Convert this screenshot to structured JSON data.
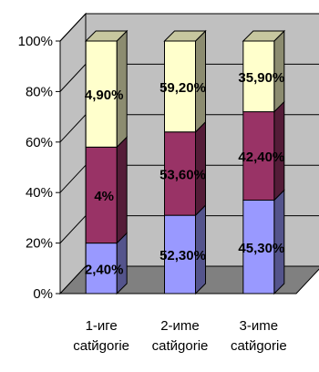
{
  "chart_data": {
    "type": "bar",
    "stacked": "percent",
    "three_d": true,
    "categories": [
      "1-иге\ncatйgorie",
      "2-иme\ncatйgorie",
      "3-иme\ncatйgorie"
    ],
    "series": [
      {
        "values": [
          20,
          31,
          37
        ],
        "labels": [
          "2,40%",
          "52,30%",
          "45,30%"
        ],
        "color": "#9999ff"
      },
      {
        "values": [
          38,
          33,
          35
        ],
        "labels": [
          "4%",
          "53,60%",
          "42,40%"
        ],
        "color": "#993366"
      },
      {
        "values": [
          42,
          36,
          28
        ],
        "labels": [
          "4,90%",
          "59,20%",
          "35,90%"
        ],
        "color": "#ffffcc"
      }
    ],
    "y_ticks": [
      "0%",
      "20%",
      "40%",
      "60%",
      "80%",
      "100%"
    ],
    "ylim": [
      0,
      100
    ],
    "grid": true,
    "colors": {
      "wall": "#c0c0c0",
      "floor": "#808080",
      "grid": "#000000"
    }
  }
}
